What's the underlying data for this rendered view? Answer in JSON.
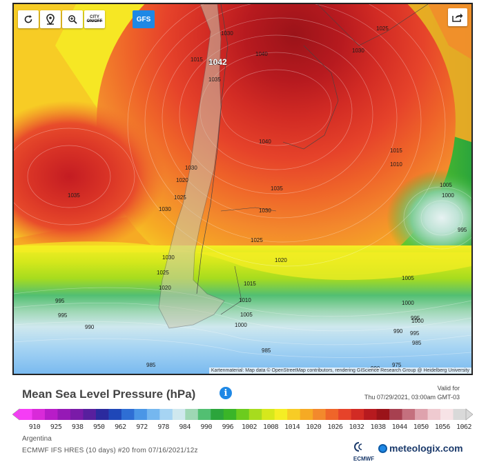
{
  "map": {
    "region_label": "Argentina",
    "attribution": "Kartenmaterial: Map data © OpenStreetMap contributors, rendering GIScience Research Group @ Heidelberg University",
    "isobar_labels": [
      "1030",
      "1025",
      "1030",
      "1015",
      "1042",
      "1035",
      "1040",
      "1040",
      "1015",
      "1010",
      "1030",
      "1020",
      "1025",
      "1035",
      "1030",
      "1035",
      "1030",
      "1025",
      "1005",
      "1000",
      "995",
      "1030",
      "1020",
      "1025",
      "1020",
      "1005",
      "1015",
      "1000",
      "1010",
      "1005",
      "995",
      "990",
      "1000",
      "995",
      "985",
      "1000",
      "995",
      "990",
      "995",
      "985",
      "985",
      "975",
      "990"
    ],
    "high_center_label": "1042"
  },
  "toolbar": {
    "refresh_icon": "refresh-icon",
    "location_icon": "location-pin-icon",
    "zoom_icon": "zoom-icon",
    "city_label": "CITY",
    "city_label_sub": "ON/OFF",
    "model_button": "GFS",
    "share_icon": "share-icon"
  },
  "legend": {
    "title": "Mean Sea Level Pressure (hPa)",
    "info_icon": "i",
    "valid_label": "Valid for",
    "valid_time": "Thu 07/29/2021, 03:00am GMT-03",
    "ticks": [
      "910",
      "925",
      "938",
      "950",
      "962",
      "972",
      "978",
      "984",
      "990",
      "996",
      "1002",
      "1008",
      "1014",
      "1020",
      "1026",
      "1032",
      "1038",
      "1044",
      "1050",
      "1056",
      "1062"
    ],
    "colors": [
      "#f53df5",
      "#d92ad9",
      "#b81cc8",
      "#9619b6",
      "#7a1ba8",
      "#581f9e",
      "#2b2a9e",
      "#1f47b8",
      "#2e6ed4",
      "#4a96e6",
      "#75b7ef",
      "#a6d4f3",
      "#cfe8ee",
      "#9ed7b4",
      "#52bf72",
      "#2ba53c",
      "#3ab528",
      "#6ccc1e",
      "#a7dc1e",
      "#d6e81c",
      "#f5ee24",
      "#f7cc25",
      "#f6aa24",
      "#f3892c",
      "#ef6529",
      "#e6432a",
      "#d22b24",
      "#b71a1f",
      "#9b1319",
      "#a74050",
      "#c4707e",
      "#dea2ad",
      "#efcad0",
      "#f7e3e6",
      "#d9d9d9"
    ]
  },
  "footer": {
    "region": "Argentina",
    "model": "ECMWF IFS HRES (10 days) #20 from 07/16/2021/12z",
    "ecmwf_label": "ECMWF",
    "brand": "meteologix.com"
  }
}
